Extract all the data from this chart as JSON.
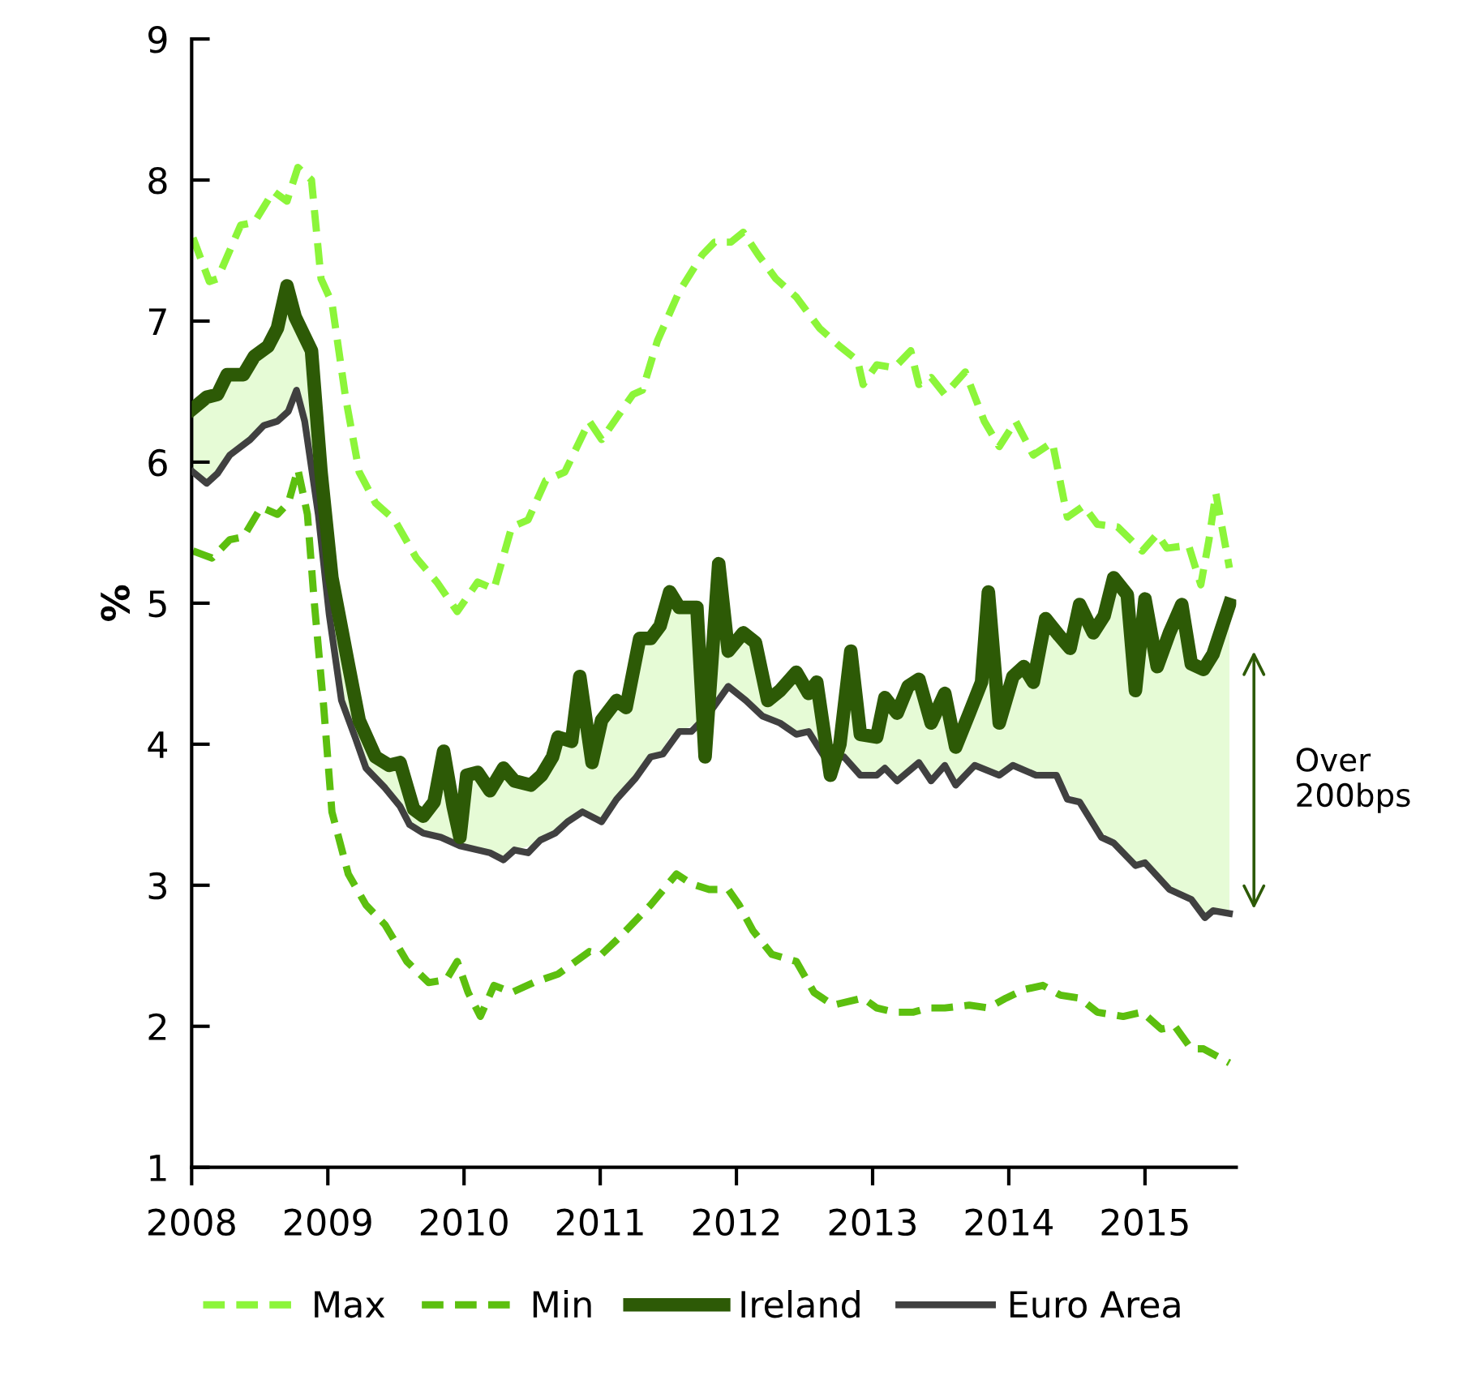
{
  "chart_data": {
    "type": "line",
    "ylabel": "%",
    "xlim": [
      2008,
      2015.67
    ],
    "xticks": [
      2008,
      2009,
      2010,
      2011,
      2012,
      2013,
      2014,
      2015
    ],
    "ylim": [
      1,
      9
    ],
    "yticks": [
      1,
      2,
      3,
      4,
      5,
      6,
      7,
      8,
      9
    ],
    "grid": false,
    "legend": "bottom",
    "marker": "none",
    "annotations": [
      "Over\n200bps"
    ],
    "series": [
      {
        "name": "Max",
        "color": "#8cf53a",
        "line_style": "dashed",
        "x": [
          2008.01,
          2008.13,
          2008.19,
          2008.36,
          2008.46,
          2008.6,
          2008.7,
          2008.78,
          2008.88,
          2008.95,
          2009.03,
          2009.13,
          2009.23,
          2009.35,
          2009.49,
          2009.65,
          2009.8,
          2009.95,
          2010.1,
          2010.22,
          2010.35,
          2010.47,
          2010.6,
          2010.74,
          2010.92,
          2011.01,
          2011.24,
          2011.31,
          2011.42,
          2011.58,
          2011.75,
          2011.84,
          2011.96,
          2012.05,
          2012.16,
          2012.29,
          2012.44,
          2012.61,
          2012.76,
          2012.89,
          2012.93,
          2013.03,
          2013.16,
          2013.28,
          2013.34,
          2013.43,
          2013.53,
          2013.68,
          2013.82,
          2013.93,
          2014.05,
          2014.18,
          2014.32,
          2014.43,
          2014.55,
          2014.65,
          2014.8,
          2014.98,
          2015.09,
          2015.16,
          2015.32,
          2015.41,
          2015.47,
          2015.52,
          2015.62
        ],
        "values": [
          7.59,
          7.28,
          7.3,
          7.68,
          7.7,
          7.92,
          7.85,
          8.09,
          8.0,
          7.3,
          7.13,
          6.46,
          5.93,
          5.71,
          5.59,
          5.32,
          5.15,
          4.94,
          5.15,
          5.1,
          5.54,
          5.59,
          5.87,
          5.93,
          6.29,
          6.16,
          6.48,
          6.51,
          6.86,
          7.21,
          7.47,
          7.56,
          7.56,
          7.63,
          7.47,
          7.3,
          7.17,
          6.95,
          6.82,
          6.72,
          6.55,
          6.69,
          6.67,
          6.79,
          6.55,
          6.6,
          6.48,
          6.64,
          6.29,
          6.11,
          6.29,
          6.05,
          6.14,
          5.61,
          5.69,
          5.56,
          5.54,
          5.37,
          5.49,
          5.39,
          5.41,
          5.13,
          5.45,
          5.78,
          5.25
        ]
      },
      {
        "name": "Min",
        "color": "#5cbf0f",
        "line_style": "dashed",
        "x": [
          2008.01,
          2008.15,
          2008.28,
          2008.38,
          2008.51,
          2008.63,
          2008.71,
          2008.78,
          2008.85,
          2008.9,
          2008.97,
          2009.03,
          2009.15,
          2009.28,
          2009.42,
          2009.58,
          2009.74,
          2009.87,
          2009.95,
          2010.03,
          2010.12,
          2010.22,
          2010.35,
          2010.51,
          2010.69,
          2010.92,
          2011.01,
          2011.14,
          2011.37,
          2011.56,
          2011.67,
          2011.8,
          2011.94,
          2012.02,
          2012.12,
          2012.26,
          2012.44,
          2012.57,
          2012.71,
          2012.93,
          2013.03,
          2013.16,
          2013.3,
          2013.41,
          2013.53,
          2013.71,
          2013.85,
          2013.98,
          2014.11,
          2014.25,
          2014.38,
          2014.52,
          2014.65,
          2014.84,
          2014.98,
          2015.12,
          2015.22,
          2015.34,
          2015.43,
          2015.62
        ],
        "values": [
          5.37,
          5.32,
          5.45,
          5.47,
          5.68,
          5.63,
          5.71,
          5.95,
          5.63,
          5.01,
          4.26,
          3.52,
          3.08,
          2.86,
          2.72,
          2.46,
          2.31,
          2.33,
          2.46,
          2.24,
          2.07,
          2.29,
          2.24,
          2.31,
          2.37,
          2.53,
          2.51,
          2.63,
          2.86,
          3.08,
          3.01,
          2.97,
          2.97,
          2.86,
          2.68,
          2.51,
          2.46,
          2.24,
          2.15,
          2.2,
          2.13,
          2.1,
          2.1,
          2.13,
          2.13,
          2.15,
          2.13,
          2.2,
          2.26,
          2.29,
          2.22,
          2.2,
          2.1,
          2.07,
          2.1,
          1.98,
          2.0,
          1.84,
          1.84,
          1.74
        ]
      },
      {
        "name": "Ireland",
        "color": "#2d5a06",
        "line_style": "solid",
        "x": [
          2008.01,
          2008.11,
          2008.19,
          2008.26,
          2008.38,
          2008.46,
          2008.56,
          2008.63,
          2008.7,
          2008.76,
          2008.88,
          2008.95,
          2009.03,
          2009.15,
          2009.23,
          2009.35,
          2009.45,
          2009.53,
          2009.63,
          2009.7,
          2009.78,
          2009.85,
          2009.92,
          2009.97,
          2010.02,
          2010.1,
          2010.19,
          2010.29,
          2010.37,
          2010.49,
          2010.57,
          2010.65,
          2010.69,
          2010.79,
          2010.85,
          2010.94,
          2011.01,
          2011.12,
          2011.19,
          2011.29,
          2011.37,
          2011.44,
          2011.51,
          2011.58,
          2011.71,
          2011.77,
          2011.87,
          2011.94,
          2012.05,
          2012.14,
          2012.23,
          2012.32,
          2012.44,
          2012.53,
          2012.59,
          2012.69,
          2012.76,
          2012.84,
          2012.91,
          2013.03,
          2013.09,
          2013.18,
          2013.26,
          2013.34,
          2013.43,
          2013.53,
          2013.61,
          2013.71,
          2013.8,
          2013.85,
          2013.93,
          2014.03,
          2014.11,
          2014.18,
          2014.27,
          2014.37,
          2014.45,
          2014.52,
          2014.62,
          2014.7,
          2014.77,
          2014.87,
          2014.93,
          2015.0,
          2015.09,
          2015.18,
          2015.27,
          2015.34,
          2015.43,
          2015.5,
          2015.62
        ],
        "values": [
          6.38,
          6.46,
          6.48,
          6.62,
          6.62,
          6.75,
          6.82,
          6.95,
          7.25,
          7.03,
          6.79,
          5.93,
          5.18,
          4.57,
          4.17,
          3.91,
          3.85,
          3.87,
          3.54,
          3.49,
          3.59,
          3.95,
          3.56,
          3.34,
          3.78,
          3.8,
          3.67,
          3.83,
          3.74,
          3.71,
          3.78,
          3.91,
          4.05,
          4.02,
          4.48,
          3.87,
          4.17,
          4.31,
          4.26,
          4.75,
          4.75,
          4.84,
          5.08,
          4.97,
          4.97,
          3.91,
          5.28,
          4.66,
          4.79,
          4.72,
          4.31,
          4.38,
          4.51,
          4.36,
          4.44,
          3.78,
          4.0,
          4.66,
          4.07,
          4.05,
          4.33,
          4.22,
          4.41,
          4.46,
          4.15,
          4.36,
          3.98,
          4.22,
          4.44,
          5.08,
          4.15,
          4.48,
          4.55,
          4.44,
          4.89,
          4.77,
          4.68,
          4.99,
          4.79,
          4.91,
          5.18,
          5.06,
          4.38,
          5.03,
          4.55,
          4.79,
          4.99,
          4.57,
          4.53,
          4.64,
          4.99
        ],
        "lower": [
          5.93,
          5.85,
          5.92,
          6.0,
          6.1,
          6.2,
          6.27,
          6.29,
          6.35,
          6.47,
          5.96,
          5.45,
          4.75,
          4.18,
          3.97,
          3.75,
          3.62,
          3.56,
          3.42,
          3.37,
          3.36,
          3.35,
          3.32,
          3.3,
          3.28,
          3.25,
          3.23,
          3.18,
          3.25,
          3.28,
          3.34,
          3.36,
          3.39,
          3.45,
          3.5,
          3.5,
          3.45,
          3.61,
          3.7,
          3.8,
          3.91,
          3.93,
          4.05,
          4.09,
          4.15,
          4.22,
          4.33,
          4.41,
          4.33,
          4.24,
          4.18,
          4.14,
          4.07,
          4.09,
          3.98,
          3.89,
          3.9,
          3.84,
          3.78,
          3.78,
          3.83,
          3.74,
          3.82,
          3.86,
          3.76,
          3.85,
          3.71,
          3.8,
          3.83,
          3.8,
          3.78,
          3.85,
          3.8,
          3.78,
          3.78,
          3.78,
          3.64,
          3.59,
          3.45,
          3.34,
          3.3,
          3.2,
          3.14,
          3.16,
          3.05,
          2.97,
          2.93,
          2.9,
          2.78,
          2.82,
          2.8
        ],
        "upper": [
          6.38,
          6.46,
          6.48,
          6.62,
          6.62,
          6.75,
          6.82,
          6.95,
          7.25,
          7.03,
          6.79,
          5.93,
          5.18,
          4.57,
          4.17,
          3.91,
          3.85,
          3.87,
          3.54,
          3.49,
          3.59,
          3.95,
          3.56,
          3.34,
          3.78,
          3.8,
          3.67,
          3.83,
          3.74,
          3.71,
          3.78,
          3.91,
          4.05,
          4.02,
          4.48,
          3.87,
          4.17,
          4.31,
          4.26,
          4.75,
          4.75,
          4.84,
          5.08,
          4.97,
          4.97,
          3.91,
          5.28,
          4.66,
          4.79,
          4.72,
          4.31,
          4.38,
          4.51,
          4.36,
          4.44,
          3.78,
          4.0,
          4.66,
          4.07,
          4.05,
          4.33,
          4.22,
          4.41,
          4.46,
          4.15,
          4.36,
          3.98,
          4.22,
          4.44,
          5.08,
          4.15,
          4.48,
          4.55,
          4.44,
          4.89,
          4.77,
          4.68,
          4.99,
          4.79,
          4.91,
          5.18,
          5.06,
          4.38,
          5.03,
          4.55,
          4.79,
          4.99,
          4.57,
          4.53,
          4.64,
          4.99
        ]
      },
      {
        "name": "Euro Area",
        "color": "#404040",
        "line_style": "solid",
        "x": [
          2008.01,
          2008.11,
          2008.19,
          2008.28,
          2008.43,
          2008.53,
          2008.63,
          2008.71,
          2008.77,
          2008.83,
          2008.93,
          2009.01,
          2009.1,
          2009.2,
          2009.28,
          2009.42,
          2009.53,
          2009.6,
          2009.7,
          2009.83,
          2009.97,
          2010.1,
          2010.19,
          2010.29,
          2010.37,
          2010.47,
          2010.56,
          2010.67,
          2010.76,
          2010.87,
          2011.01,
          2011.12,
          2011.26,
          2011.37,
          2011.46,
          2011.58,
          2011.67,
          2011.8,
          2011.94,
          2012.07,
          2012.19,
          2012.32,
          2012.44,
          2012.53,
          2012.66,
          2012.79,
          2012.91,
          2013.03,
          2013.09,
          2013.18,
          2013.34,
          2013.43,
          2013.53,
          2013.61,
          2013.75,
          2013.93,
          2014.03,
          2014.2,
          2014.35,
          2014.43,
          2014.52,
          2014.68,
          2014.77,
          2014.93,
          2015.0,
          2015.18,
          2015.34,
          2015.44,
          2015.5,
          2015.62
        ],
        "values": [
          5.93,
          5.85,
          5.92,
          6.05,
          6.16,
          6.26,
          6.29,
          6.36,
          6.51,
          6.29,
          5.63,
          4.92,
          4.31,
          4.05,
          3.83,
          3.69,
          3.56,
          3.43,
          3.37,
          3.34,
          3.28,
          3.25,
          3.23,
          3.18,
          3.25,
          3.23,
          3.32,
          3.37,
          3.45,
          3.52,
          3.45,
          3.61,
          3.76,
          3.91,
          3.93,
          4.09,
          4.09,
          4.22,
          4.41,
          4.31,
          4.2,
          4.15,
          4.07,
          4.09,
          3.89,
          3.91,
          3.78,
          3.78,
          3.83,
          3.74,
          3.87,
          3.74,
          3.85,
          3.71,
          3.85,
          3.78,
          3.85,
          3.78,
          3.78,
          3.61,
          3.59,
          3.34,
          3.3,
          3.14,
          3.16,
          2.97,
          2.9,
          2.77,
          2.82,
          2.8
        ]
      }
    ]
  }
}
